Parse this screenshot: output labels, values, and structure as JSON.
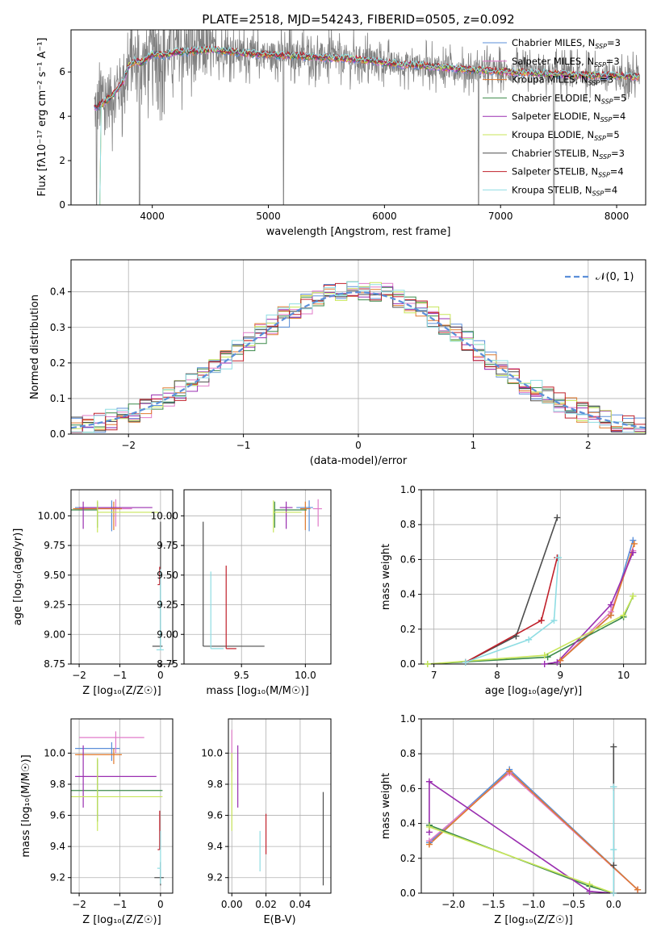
{
  "colors": {
    "chabrier_miles": "#5b8fd9",
    "salpeter_miles": "#e07bc8",
    "kroupa_miles": "#e07a2e",
    "chabrier_elodie": "#3c8a4a",
    "salpeter_elodie": "#9a2fb0",
    "kroupa_elodie": "#c8e65a",
    "chabrier_stelib": "#4d4d4d",
    "salpeter_stelib": "#c0202a",
    "kroupa_stelib": "#8fdde3",
    "data_gray": "#808080",
    "gauss": "#5b8fd9"
  },
  "chart_data": [
    {
      "id": "spectrum",
      "type": "line",
      "title": "PLATE=2518, MJD=54243, FIBERID=0505, z=0.092",
      "xlabel": "wavelength [Angstrom, rest frame]",
      "ylabel": "Flux [f_λ 10^-17 erg cm^-2 s^-1 A^-1]",
      "xlim": [
        3300,
        8250
      ],
      "ylim": [
        0,
        7.9
      ],
      "xticks": [
        "4000",
        "5000",
        "6000",
        "7000",
        "8000"
      ],
      "yticks": [
        "0",
        "2",
        "4",
        "6"
      ],
      "grid": false,
      "legend_position": "upper-right",
      "legend": [
        {
          "label": "Chabrier MILES, N",
          "sub": "SSP",
          "eq": "=3",
          "color_key": "chabrier_miles"
        },
        {
          "label": "Salpeter MILES, N",
          "sub": "SSP",
          "eq": "=3",
          "color_key": "salpeter_miles"
        },
        {
          "label": "Kroupa MILES, N",
          "sub": "SSP",
          "eq": "=3",
          "color_key": "kroupa_miles"
        },
        {
          "label": "Chabrier ELODIE, N",
          "sub": "SSP",
          "eq": "=5",
          "color_key": "chabrier_elodie"
        },
        {
          "label": "Salpeter ELODIE, N",
          "sub": "SSP",
          "eq": "=4",
          "color_key": "salpeter_elodie"
        },
        {
          "label": "Kroupa ELODIE, N",
          "sub": "SSP",
          "eq": "=5",
          "color_key": "kroupa_elodie"
        },
        {
          "label": "Chabrier STELIB, N",
          "sub": "SSP",
          "eq": "=3",
          "color_key": "chabrier_stelib"
        },
        {
          "label": "Salpeter STELIB, N",
          "sub": "SSP",
          "eq": "=4",
          "color_key": "salpeter_stelib"
        },
        {
          "label": "Kroupa STELIB, N",
          "sub": "SSP",
          "eq": "=4",
          "color_key": "kroupa_stelib"
        }
      ],
      "continuum": {
        "x": [
          3500,
          3550,
          3600,
          3650,
          3700,
          3750,
          3800,
          3850,
          3900,
          3950,
          4000,
          4100,
          4200,
          4300,
          4400,
          4500,
          4700,
          4900,
          5100,
          5300,
          5500,
          5700,
          5900,
          6100,
          6300,
          6500,
          6700,
          6900,
          7100,
          7300,
          7500,
          7700,
          7900,
          8100,
          8200
        ],
        "y": [
          4.4,
          4.5,
          4.7,
          4.9,
          5.2,
          5.6,
          6.3,
          6.5,
          6.4,
          6.6,
          6.8,
          6.75,
          6.9,
          6.9,
          6.95,
          7.0,
          6.9,
          6.8,
          6.75,
          6.7,
          6.65,
          6.6,
          6.5,
          6.35,
          6.3,
          6.2,
          6.1,
          6.05,
          6.0,
          5.95,
          5.9,
          5.85,
          5.85,
          5.8,
          5.8
        ]
      },
      "data_noise_amplitude": 1.3,
      "deep_dips": [
        3520,
        3890,
        5130,
        6810,
        7460
      ]
    },
    {
      "id": "residuals",
      "type": "line",
      "title": "",
      "xlabel": "(data-model)/error",
      "ylabel": "Normed distribution",
      "xlim": [
        -2.5,
        2.5
      ],
      "ylim": [
        0,
        0.49
      ],
      "xticks": [
        "−2",
        "−1",
        "0",
        "1",
        "2"
      ],
      "yticks": [
        "0.0",
        "0.1",
        "0.2",
        "0.3",
        "0.4"
      ],
      "grid": true,
      "legend_position": "upper-right",
      "legend": [
        {
          "label": "𝒩(0, 1)",
          "color_key": "gauss",
          "style": "dashed"
        }
      ],
      "gaussian": {
        "mean": 0,
        "sigma": 1
      },
      "histogram": {
        "bin_width": 0.1,
        "x_start": -2.5,
        "series_count": 9
      }
    },
    {
      "id": "age_vs_Z",
      "type": "scatter",
      "xlabel": "Z [log₁₀(Z/Z☉)]",
      "ylabel": "age  [log₁₀(age/yr)]",
      "xlim": [
        -2.2,
        0.3
      ],
      "ylim": [
        8.75,
        10.22
      ],
      "xticks": [
        "−2",
        "−1",
        "0"
      ],
      "yticks": [
        "8.75",
        "9.00",
        "9.25",
        "9.50",
        "9.75",
        "10.00"
      ],
      "grid": true,
      "points": [
        {
          "color_key": "chabrier_miles",
          "x": -1.2,
          "xerr": [
            0.9,
            0.2
          ],
          "y": 10.07,
          "yerr": [
            0.2,
            0.06
          ]
        },
        {
          "color_key": "salpeter_miles",
          "x": -1.1,
          "xerr": [
            1.0,
            0.4
          ],
          "y": 10.06,
          "yerr": [
            0.15,
            0.08
          ]
        },
        {
          "color_key": "kroupa_miles",
          "x": -1.15,
          "xerr": [
            1.0,
            0.2
          ],
          "y": 10.06,
          "yerr": [
            0.18,
            0.06
          ]
        },
        {
          "color_key": "chabrier_elodie",
          "x": -1.55,
          "xerr": [
            0.65,
            0.0
          ],
          "y": 10.05,
          "yerr": [
            0.15,
            0.07
          ]
        },
        {
          "color_key": "salpeter_elodie",
          "x": -1.9,
          "xerr": [
            0.1,
            1.7
          ],
          "y": 10.07,
          "yerr": [
            0.18,
            0.05
          ]
        },
        {
          "color_key": "kroupa_elodie",
          "x": -1.55,
          "xerr": [
            0.0,
            1.5
          ],
          "y": 10.03,
          "yerr": [
            0.17,
            0.1
          ]
        },
        {
          "color_key": "chabrier_stelib",
          "x": 0.0,
          "xerr": [
            0.2,
            0.05
          ],
          "y": 8.9,
          "yerr": [
            0.0,
            1.05
          ]
        },
        {
          "color_key": "salpeter_stelib",
          "x": -0.02,
          "xerr": [
            0.05,
            0.0
          ],
          "y": 9.42,
          "yerr": [
            0.0,
            0.15
          ]
        },
        {
          "color_key": "kroupa_stelib",
          "x": 0.0,
          "xerr": [
            0.1,
            0.08
          ],
          "y": 8.87,
          "yerr": [
            0.0,
            0.68
          ]
        }
      ]
    },
    {
      "id": "age_vs_mass",
      "type": "scatter",
      "xlabel": "mass [log₁₀(M/M☉)]",
      "ylabel": "",
      "xlim": [
        9.05,
        10.2
      ],
      "ylim": [
        8.75,
        10.22
      ],
      "xticks": [
        "9.5",
        "10.0"
      ],
      "yticks": [
        "8.75",
        "9.00",
        "9.25",
        "9.50",
        "9.75",
        "10.00"
      ],
      "grid": true,
      "points": [
        {
          "color_key": "chabrier_miles",
          "x": 10.03,
          "xerr": [
            0.1,
            0.03
          ],
          "y": 10.07,
          "yerr": [
            0.2,
            0.06
          ]
        },
        {
          "color_key": "salpeter_miles",
          "x": 10.1,
          "xerr": [
            0.04,
            0.03
          ],
          "y": 10.06,
          "yerr": [
            0.15,
            0.08
          ]
        },
        {
          "color_key": "kroupa_miles",
          "x": 10.0,
          "xerr": [
            0.04,
            0.04
          ],
          "y": 10.06,
          "yerr": [
            0.18,
            0.06
          ]
        },
        {
          "color_key": "chabrier_elodie",
          "x": 9.76,
          "xerr": [
            0.0,
            0.25
          ],
          "y": 10.05,
          "yerr": [
            0.15,
            0.07
          ]
        },
        {
          "color_key": "salpeter_elodie",
          "x": 9.85,
          "xerr": [
            0.05,
            0.05
          ],
          "y": 10.07,
          "yerr": [
            0.18,
            0.05
          ]
        },
        {
          "color_key": "kroupa_elodie",
          "x": 9.75,
          "xerr": [
            0.0,
            0.22
          ],
          "y": 10.03,
          "yerr": [
            0.17,
            0.1
          ]
        },
        {
          "color_key": "chabrier_stelib",
          "x": 9.2,
          "xerr": [
            0.0,
            0.48
          ],
          "y": 8.9,
          "yerr": [
            0.0,
            1.05
          ]
        },
        {
          "color_key": "salpeter_stelib",
          "x": 9.38,
          "xerr": [
            0.0,
            0.08
          ],
          "y": 8.88,
          "yerr": [
            0.0,
            0.7
          ]
        },
        {
          "color_key": "kroupa_stelib",
          "x": 9.26,
          "xerr": [
            0.0,
            0.1
          ],
          "y": 8.88,
          "yerr": [
            0.0,
            0.65
          ]
        }
      ]
    },
    {
      "id": "weight_vs_age",
      "type": "line",
      "xlabel": "age  [log₁₀(age/yr)]",
      "ylabel": "mass weight",
      "xlim": [
        6.8,
        10.35
      ],
      "ylim": [
        0,
        1.0
      ],
      "xticks": [
        "7",
        "8",
        "9",
        "10"
      ],
      "yticks": [
        "0.0",
        "0.2",
        "0.4",
        "0.6",
        "0.8",
        "1.0"
      ],
      "grid": true,
      "series": [
        {
          "color_key": "chabrier_miles",
          "x": [
            9.0,
            9.8,
            10.15
          ],
          "y": [
            0.02,
            0.28,
            0.71
          ]
        },
        {
          "color_key": "salpeter_miles",
          "x": [
            9.0,
            9.8,
            10.15
          ],
          "y": [
            0.02,
            0.3,
            0.65
          ]
        },
        {
          "color_key": "kroupa_miles",
          "x": [
            9.0,
            9.8,
            10.17
          ],
          "y": [
            0.02,
            0.28,
            0.69
          ]
        },
        {
          "color_key": "chabrier_elodie",
          "x": [
            6.9,
            8.8,
            10.0,
            10.15
          ],
          "y": [
            0.0,
            0.04,
            0.27,
            0.39
          ]
        },
        {
          "color_key": "salpeter_elodie",
          "x": [
            8.75,
            8.95,
            9.8,
            10.15
          ],
          "y": [
            0.0,
            0.01,
            0.34,
            0.64
          ]
        },
        {
          "color_key": "kroupa_elodie",
          "x": [
            6.9,
            8.75,
            10.0,
            10.15
          ],
          "y": [
            0.0,
            0.05,
            0.28,
            0.39
          ]
        },
        {
          "color_key": "chabrier_stelib",
          "x": [
            7.5,
            8.3,
            8.95
          ],
          "y": [
            0.01,
            0.16,
            0.84
          ]
        },
        {
          "color_key": "salpeter_stelib",
          "x": [
            7.5,
            8.7,
            8.95
          ],
          "y": [
            0.01,
            0.25,
            0.61
          ]
        },
        {
          "color_key": "kroupa_stelib",
          "x": [
            7.5,
            8.5,
            8.9,
            8.97
          ],
          "y": [
            0.01,
            0.14,
            0.25,
            0.61
          ]
        }
      ]
    },
    {
      "id": "mass_vs_Z",
      "type": "scatter",
      "xlabel": "Z [log₁₀(Z/Z☉)]",
      "ylabel": "mass [log₁₀(M/M☉)]",
      "xlim": [
        -2.2,
        0.3
      ],
      "ylim": [
        9.1,
        10.22
      ],
      "xticks": [
        "−2",
        "−1",
        "0"
      ],
      "yticks": [
        "9.2",
        "9.4",
        "9.6",
        "9.8",
        "10.0"
      ],
      "grid": true,
      "points": [
        {
          "color_key": "chabrier_miles",
          "x": -1.2,
          "xerr": [
            0.9,
            0.2
          ],
          "y": 10.03,
          "yerr": [
            0.08,
            0.04
          ]
        },
        {
          "color_key": "salpeter_miles",
          "x": -1.1,
          "xerr": [
            0.9,
            0.7
          ],
          "y": 10.1,
          "yerr": [
            0.1,
            0.04
          ]
        },
        {
          "color_key": "kroupa_miles",
          "x": -1.15,
          "xerr": [
            0.95,
            0.2
          ],
          "y": 9.99,
          "yerr": [
            0.06,
            0.04
          ]
        },
        {
          "color_key": "chabrier_elodie",
          "x": -1.55,
          "xerr": [
            0.65,
            1.6
          ],
          "y": 9.76,
          "yerr": [
            0.2,
            0.2
          ]
        },
        {
          "color_key": "salpeter_elodie",
          "x": -1.9,
          "xerr": [
            0.2,
            1.8
          ],
          "y": 9.85,
          "yerr": [
            0.2,
            0.2
          ]
        },
        {
          "color_key": "kroupa_elodie",
          "x": -1.55,
          "xerr": [
            0.65,
            1.6
          ],
          "y": 9.72,
          "yerr": [
            0.22,
            0.25
          ]
        },
        {
          "color_key": "chabrier_stelib",
          "x": 0.0,
          "xerr": [
            0.15,
            0.08
          ],
          "y": 9.2,
          "yerr": [
            0.05,
            0.1
          ]
        },
        {
          "color_key": "salpeter_stelib",
          "x": -0.02,
          "xerr": [
            0.05,
            0.0
          ],
          "y": 9.38,
          "yerr": [
            0.0,
            0.25
          ]
        },
        {
          "color_key": "kroupa_stelib",
          "x": 0.0,
          "xerr": [
            0.08,
            0.0
          ],
          "y": 9.26,
          "yerr": [
            0.1,
            0.24
          ]
        }
      ]
    },
    {
      "id": "mass_vs_ebv",
      "type": "scatter",
      "xlabel": "E(B-V)",
      "ylabel": "",
      "xlim": [
        -0.002,
        0.058
      ],
      "ylim": [
        9.1,
        10.22
      ],
      "xticks": [
        "0.00",
        "0.02",
        "0.04"
      ],
      "yticks": [
        "9.2",
        "9.4",
        "9.6",
        "9.8",
        "10.0"
      ],
      "grid": true,
      "points": [
        {
          "color_key": "salpeter_miles",
          "x": 0.0,
          "y": 10.0,
          "yerr": [
            0.12,
            0.15
          ]
        },
        {
          "color_key": "kroupa_elodie",
          "x": 0.0,
          "y": 9.75,
          "yerr": [
            0.25,
            0.25
          ]
        },
        {
          "color_key": "salpeter_elodie",
          "x": 0.0035,
          "y": 9.85,
          "yerr": [
            0.2,
            0.2
          ]
        },
        {
          "color_key": "salpeter_stelib",
          "x": 0.02,
          "y": 9.48,
          "yerr": [
            0.13,
            0.13
          ]
        },
        {
          "color_key": "kroupa_stelib",
          "x": 0.0165,
          "y": 9.37,
          "yerr": [
            0.13,
            0.13
          ]
        },
        {
          "color_key": "chabrier_stelib",
          "x": 0.0535,
          "y": 9.45,
          "yerr": [
            0.3,
            0.3
          ]
        }
      ]
    },
    {
      "id": "weight_vs_Z",
      "type": "line",
      "xlabel": "Z [log₁₀(Z/Z☉)]",
      "ylabel": "mass weight",
      "xlim": [
        -2.4,
        0.4
      ],
      "ylim": [
        0,
        1.0
      ],
      "xticks": [
        "−2.0",
        "−1.5",
        "−1.0",
        "−0.5",
        "0.0"
      ],
      "yticks": [
        "0.0",
        "0.2",
        "0.4",
        "0.6",
        "0.8",
        "1.0"
      ],
      "grid": true,
      "series": [
        {
          "color_key": "chabrier_miles",
          "x": [
            -2.3,
            -1.3,
            0.3
          ],
          "y": [
            0.29,
            0.71,
            0.02
          ]
        },
        {
          "color_key": "salpeter_miles",
          "x": [
            -2.3,
            -1.3,
            0.3
          ],
          "y": [
            0.3,
            0.69,
            0.02
          ]
        },
        {
          "color_key": "kroupa_miles",
          "x": [
            -2.3,
            -1.3,
            0.3
          ],
          "y": [
            0.28,
            0.7,
            0.02
          ]
        },
        {
          "color_key": "chabrier_elodie",
          "x": [
            -2.3,
            -0.3,
            0.0
          ],
          "y": [
            0.39,
            0.04,
            0.0
          ]
        },
        {
          "color_key": "salpeter_elodie",
          "x": [
            -2.3,
            -2.3,
            -0.3,
            0.0
          ],
          "y": [
            0.35,
            0.64,
            0.01,
            0.0
          ]
        },
        {
          "color_key": "kroupa_elodie",
          "x": [
            -2.3,
            -0.3,
            0.0
          ],
          "y": [
            0.38,
            0.05,
            0.0
          ]
        },
        {
          "color_key": "chabrier_stelib",
          "x": [
            0.0,
            0.0,
            0.0
          ],
          "y": [
            0.0,
            0.16,
            0.84
          ]
        },
        {
          "color_key": "salpeter_stelib",
          "x": [
            0.0,
            0.0
          ],
          "y": [
            0.0,
            0.61
          ]
        },
        {
          "color_key": "kroupa_stelib",
          "x": [
            0.0,
            0.0,
            0.0
          ],
          "y": [
            0.0,
            0.25,
            0.61
          ]
        }
      ]
    }
  ]
}
